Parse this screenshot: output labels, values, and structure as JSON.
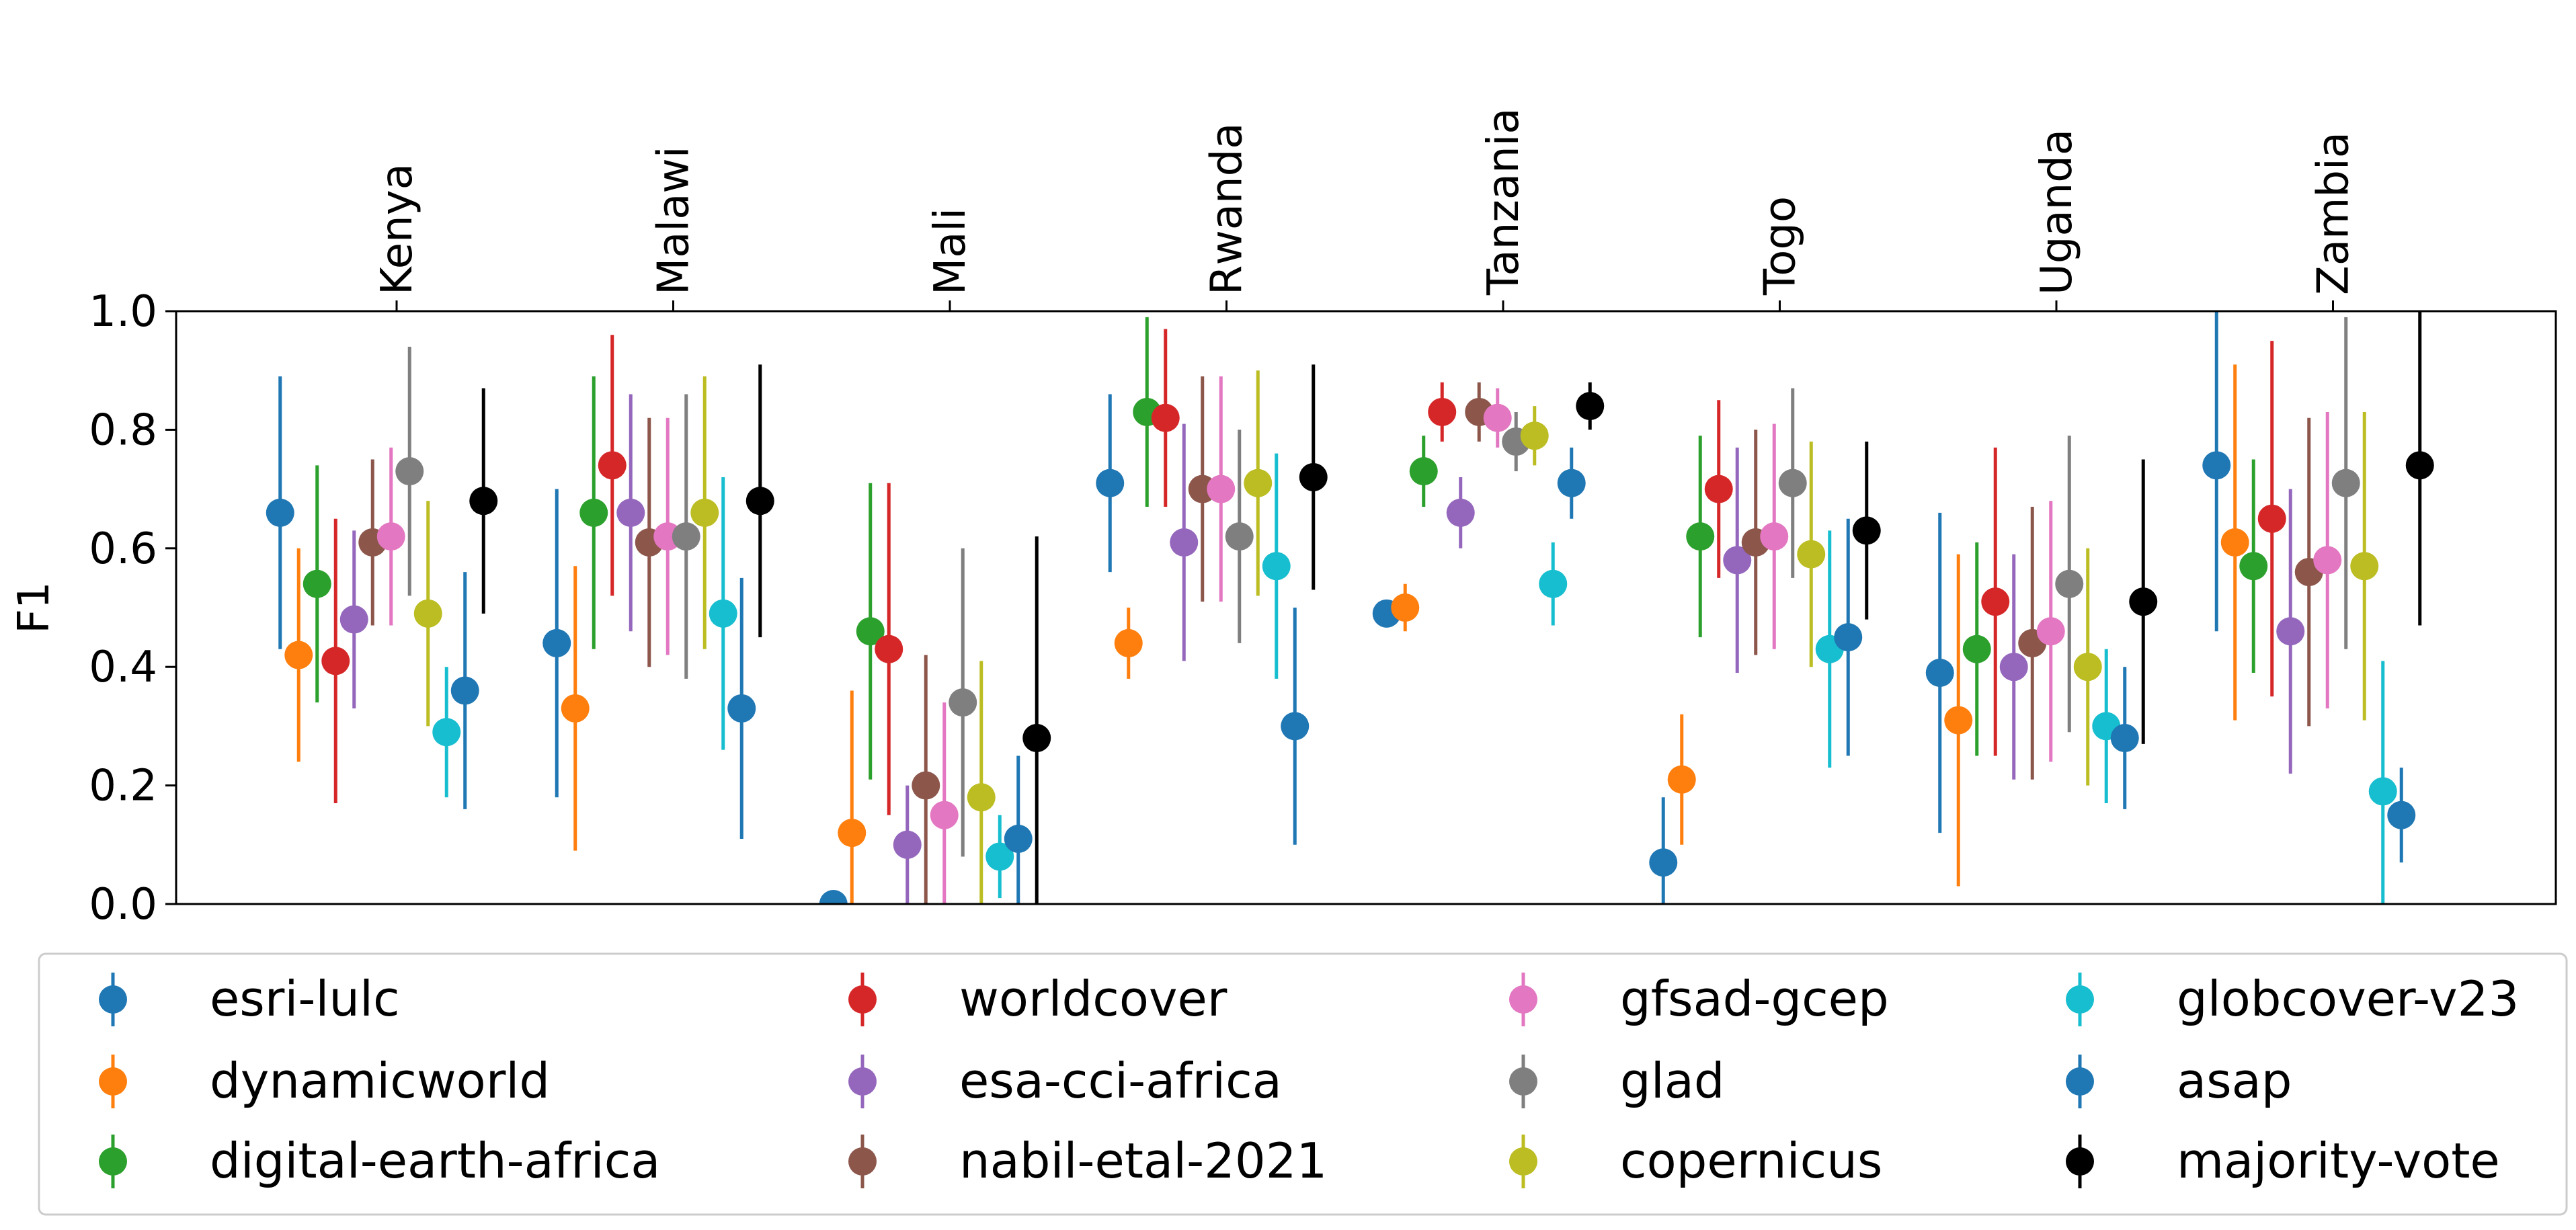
{
  "chart_data": {
    "type": "scatter",
    "ylabel": "F1",
    "ylim": [
      0,
      1
    ],
    "yticks": [
      "0.0",
      "0.2",
      "0.4",
      "0.6",
      "0.8",
      "1.0"
    ],
    "categories": [
      "Kenya",
      "Malawi",
      "Mali",
      "Rwanda",
      "Tanzania",
      "Togo",
      "Uganda",
      "Zambia"
    ],
    "category_label_position": "top, rotated",
    "grid": false,
    "legend_position": "bottom",
    "legend_columns": 4,
    "series": [
      {
        "name": "esri-lulc",
        "color": "#1f77b4",
        "values": [
          0.66,
          0.44,
          0.0,
          0.71,
          0.49,
          0.07,
          0.39,
          0.74
        ],
        "lower": [
          0.43,
          0.18,
          0.0,
          0.56,
          0.47,
          0.0,
          0.12,
          0.46
        ],
        "upper": [
          0.89,
          0.7,
          0.01,
          0.86,
          0.51,
          0.18,
          0.66,
          1.0
        ]
      },
      {
        "name": "dynamicworld",
        "color": "#ff7f0e",
        "values": [
          0.42,
          0.33,
          0.12,
          0.44,
          0.5,
          0.21,
          0.31,
          0.61
        ],
        "lower": [
          0.24,
          0.09,
          0.0,
          0.38,
          0.46,
          0.1,
          0.03,
          0.31
        ],
        "upper": [
          0.6,
          0.57,
          0.36,
          0.5,
          0.54,
          0.32,
          0.59,
          0.91
        ]
      },
      {
        "name": "digital-earth-africa",
        "color": "#2ca02c",
        "values": [
          0.54,
          0.66,
          0.46,
          0.83,
          0.73,
          0.62,
          0.43,
          0.57
        ],
        "lower": [
          0.34,
          0.43,
          0.21,
          0.67,
          0.67,
          0.45,
          0.25,
          0.39
        ],
        "upper": [
          0.74,
          0.89,
          0.71,
          0.99,
          0.79,
          0.79,
          0.61,
          0.75
        ]
      },
      {
        "name": "worldcover",
        "color": "#d62728",
        "values": [
          0.41,
          0.74,
          0.43,
          0.82,
          0.83,
          0.7,
          0.51,
          0.65
        ],
        "lower": [
          0.17,
          0.52,
          0.15,
          0.67,
          0.78,
          0.55,
          0.25,
          0.35
        ],
        "upper": [
          0.65,
          0.96,
          0.71,
          0.97,
          0.88,
          0.85,
          0.77,
          0.95
        ]
      },
      {
        "name": "esa-cci-africa",
        "color": "#9467bd",
        "values": [
          0.48,
          0.66,
          0.1,
          0.61,
          0.66,
          0.58,
          0.4,
          0.46
        ],
        "lower": [
          0.33,
          0.46,
          0.0,
          0.41,
          0.6,
          0.39,
          0.21,
          0.22
        ],
        "upper": [
          0.63,
          0.86,
          0.2,
          0.81,
          0.72,
          0.77,
          0.59,
          0.7
        ]
      },
      {
        "name": "nabil-etal-2021",
        "color": "#8c564b",
        "values": [
          0.61,
          0.61,
          0.2,
          0.7,
          0.83,
          0.61,
          0.44,
          0.56
        ],
        "lower": [
          0.47,
          0.4,
          0.0,
          0.51,
          0.78,
          0.42,
          0.21,
          0.3
        ],
        "upper": [
          0.75,
          0.82,
          0.42,
          0.89,
          0.88,
          0.8,
          0.67,
          0.82
        ]
      },
      {
        "name": "gfsad-gcep",
        "color": "#e377c2",
        "values": [
          0.62,
          0.62,
          0.15,
          0.7,
          0.82,
          0.62,
          0.46,
          0.58
        ],
        "lower": [
          0.47,
          0.42,
          0.0,
          0.51,
          0.77,
          0.43,
          0.24,
          0.33
        ],
        "upper": [
          0.77,
          0.82,
          0.34,
          0.89,
          0.87,
          0.81,
          0.68,
          0.83
        ]
      },
      {
        "name": "glad",
        "color": "#7f7f7f",
        "values": [
          0.73,
          0.62,
          0.34,
          0.62,
          0.78,
          0.71,
          0.54,
          0.71
        ],
        "lower": [
          0.52,
          0.38,
          0.08,
          0.44,
          0.73,
          0.55,
          0.29,
          0.43
        ],
        "upper": [
          0.94,
          0.86,
          0.6,
          0.8,
          0.83,
          0.87,
          0.79,
          0.99
        ]
      },
      {
        "name": "copernicus",
        "color": "#bcbd22",
        "values": [
          0.49,
          0.66,
          0.18,
          0.71,
          0.79,
          0.59,
          0.4,
          0.57
        ],
        "lower": [
          0.3,
          0.43,
          0.0,
          0.52,
          0.74,
          0.4,
          0.2,
          0.31
        ],
        "upper": [
          0.68,
          0.89,
          0.41,
          0.9,
          0.84,
          0.78,
          0.6,
          0.83
        ]
      },
      {
        "name": "globcover-v23",
        "color": "#17becf",
        "values": [
          0.29,
          0.49,
          0.08,
          0.57,
          0.54,
          0.43,
          0.3,
          0.19
        ],
        "lower": [
          0.18,
          0.26,
          0.01,
          0.38,
          0.47,
          0.23,
          0.17,
          0.0
        ],
        "upper": [
          0.4,
          0.72,
          0.15,
          0.76,
          0.61,
          0.63,
          0.43,
          0.41
        ]
      },
      {
        "name": "asap",
        "color": "#1f77b4",
        "values": [
          0.36,
          0.33,
          0.11,
          0.3,
          0.71,
          0.45,
          0.28,
          0.15
        ],
        "lower": [
          0.16,
          0.11,
          0.0,
          0.1,
          0.65,
          0.25,
          0.16,
          0.07
        ],
        "upper": [
          0.56,
          0.55,
          0.25,
          0.5,
          0.77,
          0.65,
          0.4,
          0.23
        ]
      },
      {
        "name": "majority-vote",
        "color": "#000000",
        "values": [
          0.68,
          0.68,
          0.28,
          0.72,
          0.84,
          0.63,
          0.51,
          0.74
        ],
        "lower": [
          0.49,
          0.45,
          0.0,
          0.53,
          0.8,
          0.48,
          0.27,
          0.47
        ],
        "upper": [
          0.87,
          0.91,
          0.62,
          0.91,
          0.88,
          0.78,
          0.75,
          1.0
        ]
      }
    ]
  }
}
